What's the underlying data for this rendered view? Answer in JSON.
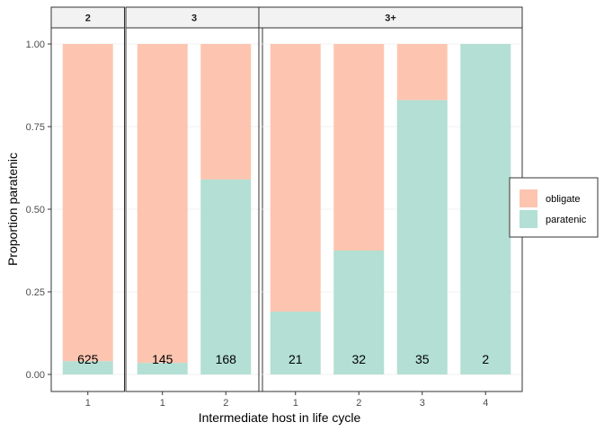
{
  "chart_data": {
    "type": "bar",
    "stacked": true,
    "xlabel": "Intermediate host in life cycle",
    "ylabel": "Proportion paratenic",
    "ylim": [
      0,
      1
    ],
    "yticks": [
      "0.00",
      "0.25",
      "0.50",
      "0.75",
      "1.00"
    ],
    "grid": true,
    "legend": {
      "position": "right",
      "entries": [
        {
          "key": "obligate",
          "label": "obligate",
          "color": "#FDC5B0"
        },
        {
          "key": "paratenic",
          "label": "paratenic",
          "color": "#B3DFD4"
        }
      ]
    },
    "facets": [
      {
        "label": "2",
        "categories": [
          "1"
        ],
        "paratenic": [
          0.04
        ],
        "counts": [
          "625"
        ]
      },
      {
        "label": "3",
        "categories": [
          "1",
          "2"
        ],
        "paratenic": [
          0.035,
          0.59
        ],
        "counts": [
          "145",
          "168"
        ]
      },
      {
        "label": "3+",
        "categories": [
          "1",
          "2",
          "3",
          "4"
        ],
        "paratenic": [
          0.19,
          0.375,
          0.83,
          1.0
        ],
        "counts": [
          "21",
          "32",
          "35",
          "2"
        ]
      }
    ]
  }
}
